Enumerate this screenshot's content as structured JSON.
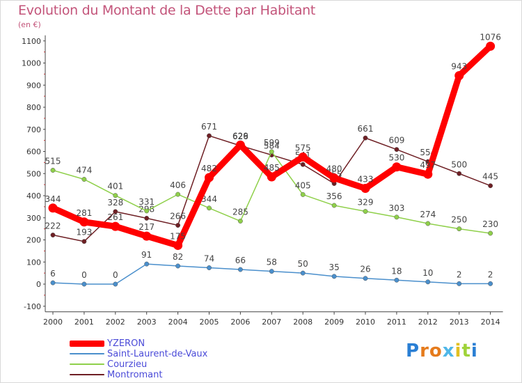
{
  "page": {
    "title": "Evolution du Montant de la Dette par Habitant",
    "unit": "(en €)",
    "logo": "Proxiti"
  },
  "chart_data": {
    "type": "line",
    "title": "Evolution du Montant de la Dette par Habitant",
    "subtitle": "(en €)",
    "xlabel": "",
    "ylabel": "",
    "x": [
      2000,
      2001,
      2002,
      2003,
      2004,
      2005,
      2006,
      2007,
      2008,
      2009,
      2010,
      2011,
      2012,
      2013,
      2014
    ],
    "ylim": [
      -100,
      1100
    ],
    "yticks": [
      -100,
      0,
      100,
      200,
      300,
      400,
      500,
      600,
      700,
      800,
      900,
      1000,
      1100
    ],
    "grid": false,
    "legend_position": "bottom-left",
    "series": [
      {
        "name": "Montromant",
        "color": "#6e1f24",
        "values": [
          222,
          193,
          328,
          298,
          266,
          671,
          626,
          584,
          541,
          455,
          661,
          609,
          554,
          500,
          445
        ]
      },
      {
        "name": "Courzieu",
        "color": "#8fd04a",
        "values": [
          515,
          474,
          401,
          331,
          406,
          344,
          285,
          599,
          405,
          356,
          329,
          303,
          274,
          250,
          230
        ]
      },
      {
        "name": "Saint-Laurent-de-Vaux",
        "color": "#4a8fcc",
        "values": [
          6,
          0,
          0,
          91,
          82,
          74,
          66,
          58,
          50,
          35,
          26,
          18,
          10,
          2,
          2
        ]
      },
      {
        "name": "YZERON",
        "color": "#ff0000",
        "values": [
          344,
          281,
          261,
          217,
          175,
          482,
          629,
          485,
          575,
          480,
          433,
          530,
          497,
          943,
          1076
        ]
      }
    ],
    "legend": [
      "YZERON",
      "Saint-Laurent-de-Vaux",
      "Courzieu",
      "Montromant"
    ]
  }
}
